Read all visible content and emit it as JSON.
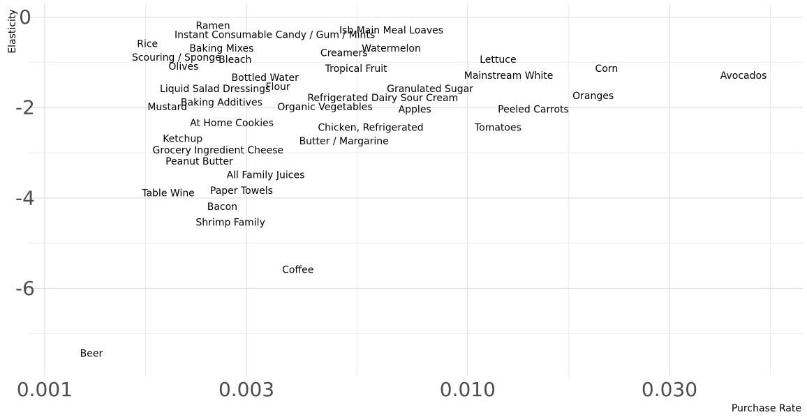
{
  "chart_data": {
    "type": "scatter",
    "xlabel": "Purchase Rate",
    "ylabel": "Elasticity",
    "x_scale": "log10",
    "xlim": [
      0.00092,
      0.062
    ],
    "ylim": [
      -7.95,
      0.3
    ],
    "x_ticks": [
      0.001,
      0.003,
      0.01,
      0.03
    ],
    "x_tick_labels": [
      "0.001",
      "0.003",
      "0.010",
      "0.030"
    ],
    "y_ticks": [
      0,
      -2,
      -4,
      -6
    ],
    "y_tick_labels": [
      "0",
      "-2",
      "-4",
      "-6"
    ],
    "grid": true,
    "points": [
      {
        "label": "Ramen",
        "x": 0.0025,
        "y": -0.2
      },
      {
        "label": "Instant Consumable Candy / Gum / Mints",
        "x": 0.0035,
        "y": -0.4
      },
      {
        "label": "Isb Main Meal Loaves",
        "x": 0.0066,
        "y": -0.3
      },
      {
        "label": "Rice",
        "x": 0.00175,
        "y": -0.6
      },
      {
        "label": "Baking Mixes",
        "x": 0.00262,
        "y": -0.7
      },
      {
        "label": "Creamers",
        "x": 0.0051,
        "y": -0.8
      },
      {
        "label": "Watermelon",
        "x": 0.0066,
        "y": -0.7
      },
      {
        "label": "Scouring / Sponge",
        "x": 0.00205,
        "y": -0.9
      },
      {
        "label": "Bleach",
        "x": 0.00282,
        "y": -0.95
      },
      {
        "label": "Lettuce",
        "x": 0.0118,
        "y": -0.95
      },
      {
        "label": "Olives",
        "x": 0.00213,
        "y": -1.1
      },
      {
        "label": "Tropical Fruit",
        "x": 0.00545,
        "y": -1.15
      },
      {
        "label": "Corn",
        "x": 0.0213,
        "y": -1.15
      },
      {
        "label": "Bottled Water",
        "x": 0.00332,
        "y": -1.35
      },
      {
        "label": "Mainstream White",
        "x": 0.0125,
        "y": -1.3
      },
      {
        "label": "Avocados",
        "x": 0.0449,
        "y": -1.3
      },
      {
        "label": "Liquid Salad Dressings",
        "x": 0.00253,
        "y": -1.6
      },
      {
        "label": "Flour",
        "x": 0.00356,
        "y": -1.55
      },
      {
        "label": "Granulated Sugar",
        "x": 0.00815,
        "y": -1.6
      },
      {
        "label": "Oranges",
        "x": 0.0198,
        "y": -1.75
      },
      {
        "label": "Refrigerated Dairy Sour Cream",
        "x": 0.0063,
        "y": -1.8
      },
      {
        "label": "Baking Additives",
        "x": 0.00262,
        "y": -1.9
      },
      {
        "label": "Mustard",
        "x": 0.00195,
        "y": -2.0
      },
      {
        "label": "Organic Vegetables",
        "x": 0.0046,
        "y": -2.0
      },
      {
        "label": "Apples",
        "x": 0.0075,
        "y": -2.05
      },
      {
        "label": "Peeled Carrots",
        "x": 0.0143,
        "y": -2.05
      },
      {
        "label": "At Home Cookies",
        "x": 0.00277,
        "y": -2.35
      },
      {
        "label": "Chicken, Refrigerated",
        "x": 0.0059,
        "y": -2.45
      },
      {
        "label": "Tomatoes",
        "x": 0.0118,
        "y": -2.45
      },
      {
        "label": "Ketchup",
        "x": 0.00212,
        "y": -2.7
      },
      {
        "label": "Butter / Margarine",
        "x": 0.0051,
        "y": -2.75
      },
      {
        "label": "Grocery Ingredient Cheese",
        "x": 0.00257,
        "y": -2.95
      },
      {
        "label": "Peanut Butter",
        "x": 0.00232,
        "y": -3.2
      },
      {
        "label": "All Family Juices",
        "x": 0.00333,
        "y": -3.5
      },
      {
        "label": "Table Wine",
        "x": 0.00196,
        "y": -3.9
      },
      {
        "label": "Paper Towels",
        "x": 0.00292,
        "y": -3.85
      },
      {
        "label": "Bacon",
        "x": 0.00263,
        "y": -4.2
      },
      {
        "label": "Shrimp Family",
        "x": 0.00275,
        "y": -4.55
      },
      {
        "label": "Coffee",
        "x": 0.00397,
        "y": -5.6
      },
      {
        "label": "Beer",
        "x": 0.00129,
        "y": -7.45
      }
    ]
  }
}
